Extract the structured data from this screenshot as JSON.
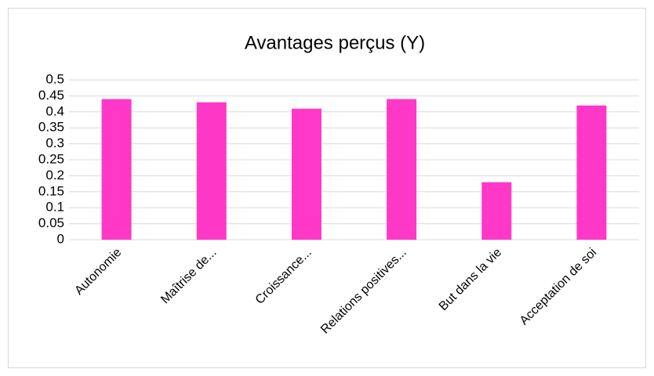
{
  "chart_data": {
    "type": "bar",
    "title": "Avantages perçus (Y)",
    "categories": [
      "Autonomie",
      "Maîtrise de...",
      "Croissance...",
      "Relations positives...",
      "But dans la vie",
      "Acceptation de soi"
    ],
    "values": [
      0.44,
      0.43,
      0.41,
      0.44,
      0.18,
      0.42
    ],
    "color": "#ff38c8",
    "ylim": [
      0,
      0.5
    ],
    "yticks": [
      0,
      0.05,
      0.1,
      0.15,
      0.2,
      0.25,
      0.3,
      0.35,
      0.4,
      0.45,
      0.5
    ],
    "grid": true
  }
}
